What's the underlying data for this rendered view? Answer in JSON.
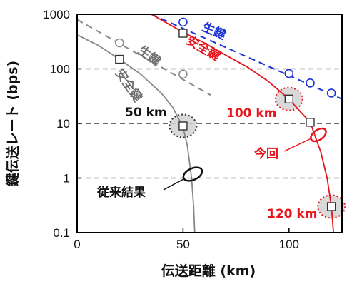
{
  "chart_data": {
    "type": "line",
    "xlabel": "伝送距離 (km)",
    "ylabel": "鍵伝送レート (bps)",
    "xlim": [
      0,
      125
    ],
    "ylim": [
      0.1,
      1000
    ],
    "yscale": "log",
    "x_ticks": [
      {
        "value": 0,
        "label": "0"
      },
      {
        "value": 50,
        "label": "50"
      },
      {
        "value": 100,
        "label": "100"
      }
    ],
    "y_ticks": [
      {
        "value": 1000,
        "label": "1000"
      },
      {
        "value": 100,
        "label": "100"
      },
      {
        "value": 10,
        "label": "10"
      },
      {
        "value": 1,
        "label": "1"
      },
      {
        "value": 0.1,
        "label": "0.1"
      }
    ],
    "grid": "horizontal dashed",
    "series": [
      {
        "name": "生鍵",
        "group": "従来",
        "color": "#888888",
        "style": "dashed",
        "marker": "circle",
        "line": [
          {
            "x": 0,
            "y": 800
          },
          {
            "x": 63,
            "y": 33
          }
        ],
        "points": [
          {
            "x": 20,
            "y": 300
          },
          {
            "x": 50,
            "y": 80
          }
        ]
      },
      {
        "name": "安全鍵",
        "group": "従来",
        "color": "#888888",
        "style": "solid",
        "marker": "square",
        "line": [
          {
            "x": 0,
            "y": 420
          },
          {
            "x": 10,
            "y": 270
          },
          {
            "x": 20,
            "y": 150
          },
          {
            "x": 30,
            "y": 80
          },
          {
            "x": 40,
            "y": 35
          },
          {
            "x": 45,
            "y": 20
          },
          {
            "x": 50,
            "y": 8.5
          },
          {
            "x": 52,
            "y": 4
          },
          {
            "x": 54,
            "y": 1
          },
          {
            "x": 55,
            "y": 0.3
          },
          {
            "x": 55.5,
            "y": 0.1
          }
        ],
        "points": [
          {
            "x": 20,
            "y": 150
          },
          {
            "x": 50,
            "y": 9
          }
        ]
      },
      {
        "name": "生鍵",
        "group": "今回",
        "color": "#1a32d6",
        "style": "dashed",
        "marker": "circle",
        "line": [
          {
            "x": 35,
            "y": 1000
          },
          {
            "x": 125,
            "y": 28
          }
        ],
        "points": [
          {
            "x": 50,
            "y": 720
          },
          {
            "x": 100,
            "y": 82
          },
          {
            "x": 110,
            "y": 55
          },
          {
            "x": 120,
            "y": 36
          }
        ]
      },
      {
        "name": "安全鍵",
        "group": "今回",
        "color": "#e8141b",
        "style": "solid",
        "marker": "square",
        "line": [
          {
            "x": 35,
            "y": 1000
          },
          {
            "x": 50,
            "y": 470
          },
          {
            "x": 60,
            "y": 300
          },
          {
            "x": 70,
            "y": 180
          },
          {
            "x": 80,
            "y": 110
          },
          {
            "x": 90,
            "y": 60
          },
          {
            "x": 100,
            "y": 28
          },
          {
            "x": 105,
            "y": 17
          },
          {
            "x": 110,
            "y": 10.5
          },
          {
            "x": 115,
            "y": 3
          },
          {
            "x": 118,
            "y": 1
          },
          {
            "x": 120,
            "y": 0.3
          },
          {
            "x": 121,
            "y": 0.1
          }
        ],
        "points": [
          {
            "x": 50,
            "y": 450
          },
          {
            "x": 100,
            "y": 28
          },
          {
            "x": 110,
            "y": 10.5
          },
          {
            "x": 120,
            "y": 0.3
          }
        ]
      }
    ],
    "highlights": [
      {
        "x": 50,
        "y": 9,
        "label": "50 km",
        "color": "#333333"
      },
      {
        "x": 100,
        "y": 28,
        "label": "100 km",
        "color": "#e8141b"
      },
      {
        "x": 120,
        "y": 0.3,
        "label": "120 km",
        "color": "#e8141b"
      }
    ],
    "annotations": [
      {
        "text": "生鍵",
        "color": "#888888"
      },
      {
        "text": "安全鍵",
        "color": "#888888"
      },
      {
        "text": "生鍵",
        "color": "#1a32d6"
      },
      {
        "text": "安全鍵",
        "color": "#e8141b"
      },
      {
        "text": "今回",
        "color": "#e8141b"
      },
      {
        "text": "従来結果",
        "color": "#111111"
      }
    ]
  }
}
